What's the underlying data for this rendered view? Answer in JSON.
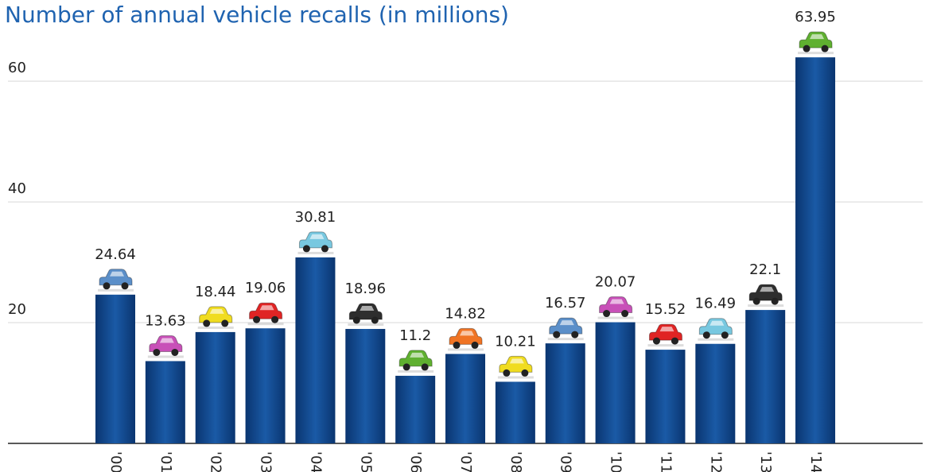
{
  "chart_data": {
    "type": "bar",
    "title": "Number of annual vehicle recalls (in millions)",
    "categories": [
      "'00",
      "'01",
      "'02",
      "'03",
      "'04",
      "'05",
      "'06",
      "'07",
      "'08",
      "'09",
      "'10",
      "'11",
      "'12",
      "'13",
      "'14"
    ],
    "values": [
      24.64,
      13.63,
      18.44,
      19.06,
      30.81,
      18.96,
      11.2,
      14.82,
      10.21,
      16.57,
      20.07,
      15.52,
      16.49,
      22.1,
      63.95
    ],
    "color": "#0d4587",
    "marker_colors": [
      "#5b8fc9",
      "#c850b8",
      "#f0dc20",
      "#e02424",
      "#78c8e0",
      "#2e2e2e",
      "#5fb030",
      "#f07424",
      "#f0dc20",
      "#5b8fc9",
      "#c850b8",
      "#e02424",
      "#78c8e0",
      "#2e2e2e",
      "#5fb030"
    ],
    "ylim": [
      0,
      72
    ],
    "yticks": [
      20,
      40,
      60
    ],
    "grid": true
  }
}
